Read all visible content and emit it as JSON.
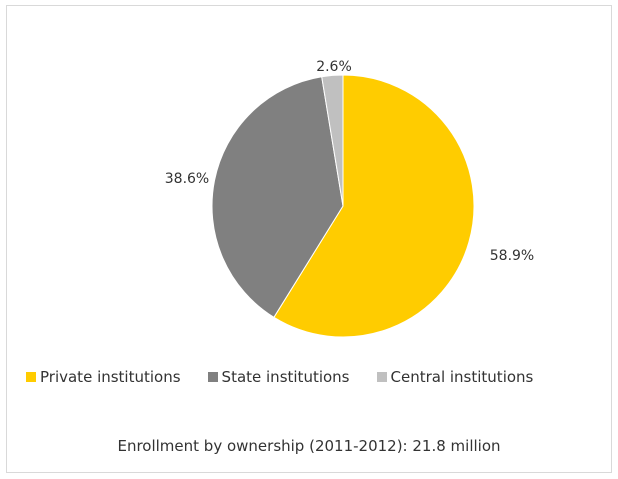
{
  "chart_data": {
    "type": "pie",
    "categories": [
      "Private institutions",
      "State institutions",
      "Central institutions"
    ],
    "values": [
      58.9,
      38.6,
      2.6
    ],
    "data_labels": [
      "58.9%",
      "38.6%",
      "2.6%"
    ],
    "colors": [
      "#FFCC00",
      "#808080",
      "#C0C0C0"
    ],
    "start_angle": "12 o'clock",
    "direction": "clockwise",
    "legend_position": "bottom",
    "caption": "Enrollment by ownership (2011-2012): 21.8 million"
  }
}
